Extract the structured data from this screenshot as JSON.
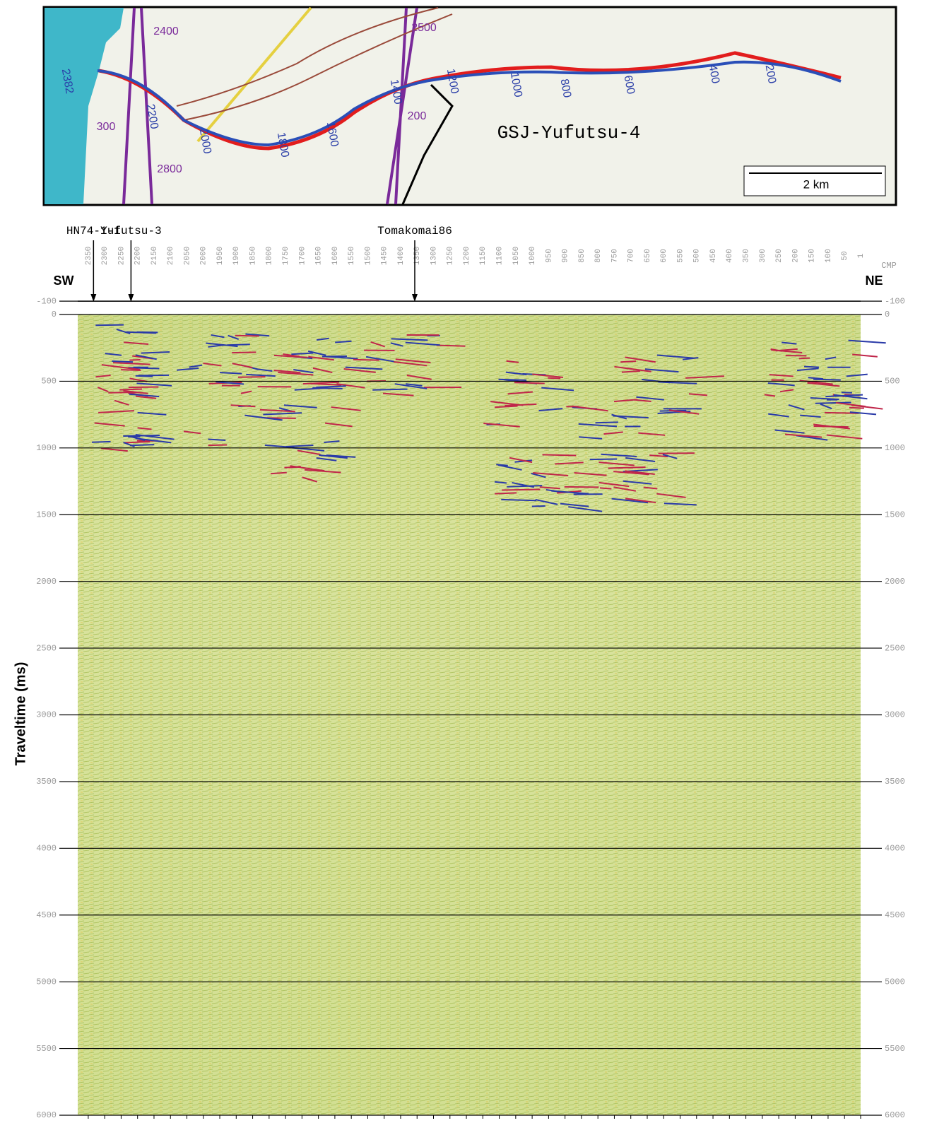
{
  "map": {
    "title": "GSJ-Yufutsu-4",
    "scale_label": "2 km",
    "route_labels": [
      "2382",
      "2200",
      "2000",
      "1800",
      "1600",
      "1400",
      "1200",
      "1000",
      "800",
      "600",
      "400",
      "200"
    ],
    "other_labels": [
      "2400",
      "2800",
      "300",
      "2500",
      "200"
    ]
  },
  "section": {
    "y_axis_label": "Traveltime (ms)",
    "left_direction": "SW",
    "right_direction": "NE",
    "cmp_label": "CMP",
    "cmp_range": [
      2382,
      1
    ],
    "cmp_ticks": [
      2350,
      2300,
      2250,
      2200,
      2150,
      2100,
      2050,
      2000,
      1950,
      1900,
      1850,
      1800,
      1750,
      1700,
      1650,
      1600,
      1550,
      1500,
      1450,
      1400,
      1350,
      1300,
      1250,
      1200,
      1150,
      1100,
      1050,
      1000,
      950,
      900,
      850,
      800,
      750,
      700,
      650,
      600,
      550,
      500,
      450,
      400,
      350,
      300,
      250,
      200,
      150,
      100,
      50,
      1
    ],
    "time_range": [
      -100,
      6000
    ],
    "time_ticks": [
      -100,
      0,
      500,
      1000,
      1500,
      2000,
      2500,
      3000,
      3500,
      4000,
      4500,
      5000,
      5500,
      6000
    ],
    "wells": [
      {
        "label": "HN74-1-1",
        "cmp": 2334
      },
      {
        "label": "Yufutsu-3",
        "cmp": 2220
      },
      {
        "label": "Tomakomai86",
        "cmp": 1357
      }
    ]
  }
}
